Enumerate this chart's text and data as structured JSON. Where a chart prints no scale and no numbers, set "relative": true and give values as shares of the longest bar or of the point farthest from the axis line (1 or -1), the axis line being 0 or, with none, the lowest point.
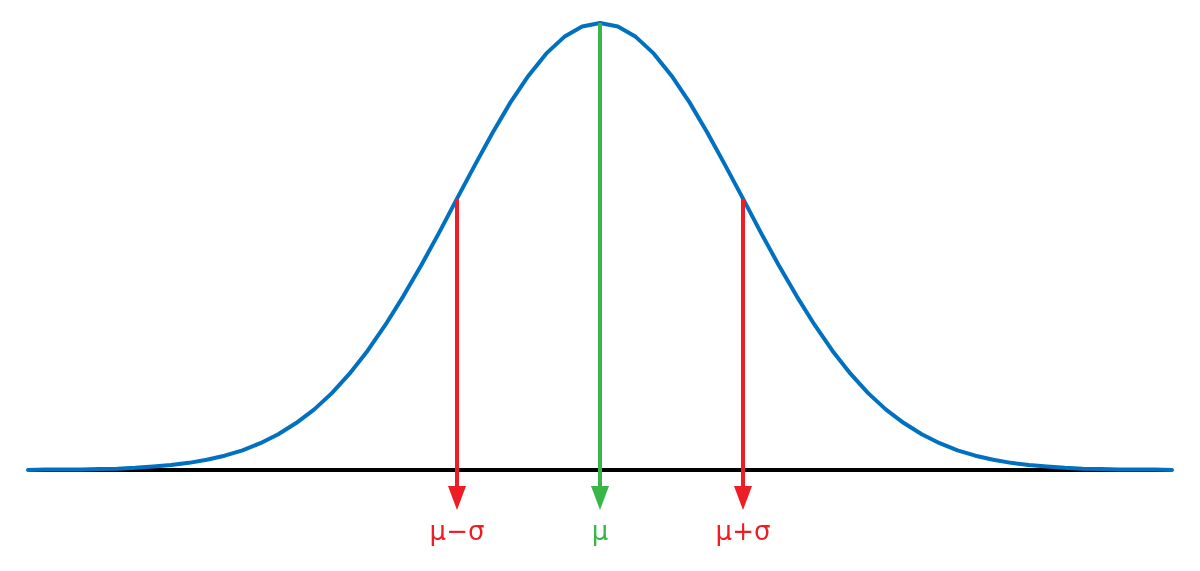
{
  "chart_data": {
    "type": "line",
    "relative": true,
    "categories": [
      null,
      null,
      null,
      null,
      null,
      null,
      null,
      null,
      null,
      null,
      null,
      null,
      null,
      null,
      null,
      null,
      null,
      null,
      null,
      null,
      null,
      null,
      null,
      null,
      "μ−σ",
      null,
      null,
      null,
      null,
      null,
      null,
      null,
      "μ",
      null,
      null,
      null,
      null,
      null,
      null,
      null,
      "μ+σ",
      null,
      null,
      null,
      null,
      null,
      null,
      null,
      null,
      null,
      null,
      null,
      null,
      null,
      null,
      null,
      null,
      null,
      null,
      null,
      null,
      null,
      null,
      null,
      null
    ],
    "series": [
      {
        "color": "#0070c0",
        "values": [
          0,
          0.001,
          0.001,
          0.001,
          0.002,
          0.003,
          0.005,
          0.008,
          0.011,
          0.016,
          0.023,
          0.032,
          0.044,
          0.06,
          0.08,
          0.105,
          0.135,
          0.172,
          0.216,
          0.267,
          0.325,
          0.389,
          0.458,
          0.531,
          0.607,
          0.682,
          0.755,
          0.823,
          0.882,
          0.932,
          0.969,
          0.992,
          1,
          0.992,
          0.969,
          0.932,
          0.882,
          0.823,
          0.755,
          0.682,
          0.607,
          0.531,
          0.458,
          0.389,
          0.325,
          0.267,
          0.216,
          0.172,
          0.135,
          0.105,
          0.08,
          0.06,
          0.044,
          0.032,
          0.023,
          0.016,
          0.011,
          0.008,
          0.005,
          0.003,
          0.002,
          0.001,
          0.001,
          0.001,
          0
        ]
      }
    ],
    "ref_lines": [
      {
        "axis": "x",
        "value": "μ−σ",
        "color": "#ee1c25"
      },
      {
        "axis": "x",
        "value": "μ",
        "color": "#3ab54a"
      },
      {
        "axis": "x",
        "value": "μ+σ",
        "color": "#ee1c25"
      }
    ],
    "marker": "none",
    "line_style": "solid"
  }
}
